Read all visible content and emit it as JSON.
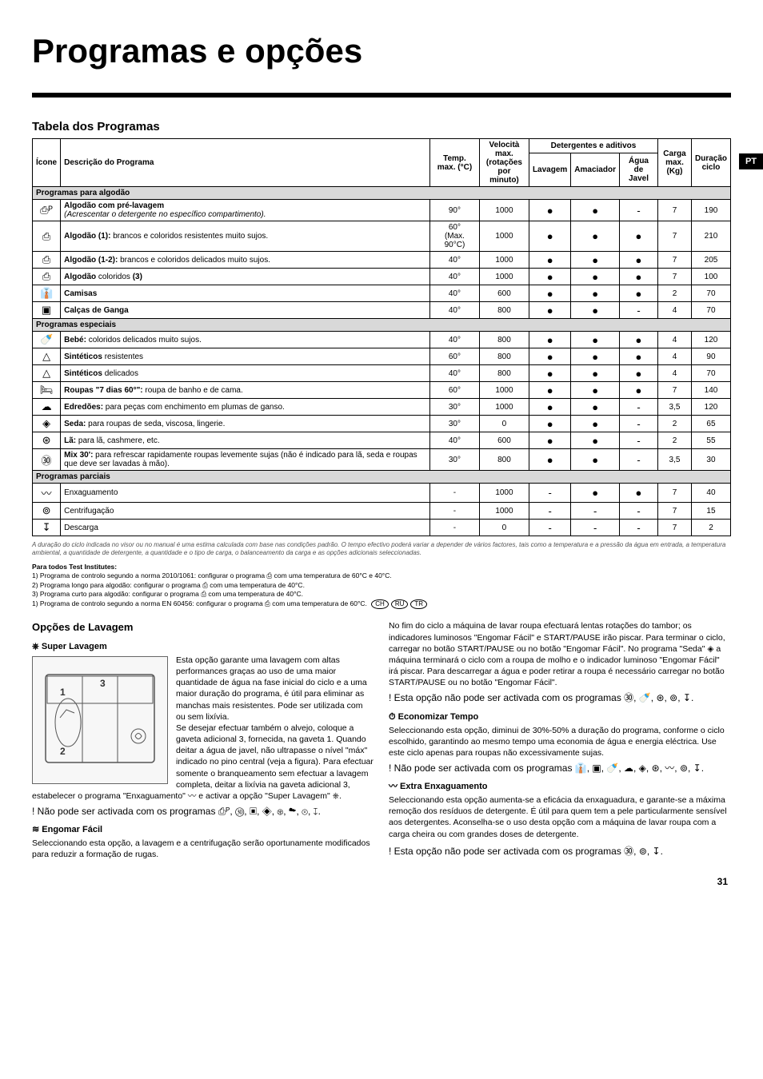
{
  "page": {
    "title": "Programas e opções",
    "lang_tab": "PT",
    "page_number": "31"
  },
  "table": {
    "section_title": "Tabela dos Programas",
    "headers": {
      "icone": "Ícone",
      "desc": "Descrição do Programa",
      "temp": "Temp. max. (°C)",
      "speed": "Velocità max. (rotações por minuto)",
      "detergents_group": "Detergentes e aditivos",
      "lavagem": "Lavagem",
      "amaciador": "Amaciador",
      "agua_javel": "Água de Javel",
      "carga": "Carga max. (Kg)",
      "duracao": "Duração ciclo"
    },
    "groups": [
      {
        "label": "Programas para algodão"
      },
      {
        "label": "Programas especiais"
      },
      {
        "label": "Programas parciais"
      }
    ],
    "cotton_rows": [
      {
        "icon": "⎙ᴾ",
        "desc_html": "<b>Algodão com pré-lavagem</b><br><i>(Acrescentar o detergente no específico compartimento).</i>",
        "temp": "90°",
        "speed": "1000",
        "lav": "●",
        "ama": "●",
        "jav": "-",
        "carga": "7",
        "dur": "190"
      },
      {
        "icon": "⎙",
        "desc_html": "<b>Algodão (1):</b> brancos e coloridos resistentes muito sujos.",
        "temp": "60°<br>(Max. 90°C)",
        "speed": "1000",
        "lav": "●",
        "ama": "●",
        "jav": "●",
        "carga": "7",
        "dur": "210"
      },
      {
        "icon": "⎙",
        "desc_html": "<b>Algodão (1-2):</b> brancos e coloridos delicados muito sujos.",
        "temp": "40°",
        "speed": "1000",
        "lav": "●",
        "ama": "●",
        "jav": "●",
        "carga": "7",
        "dur": "205"
      },
      {
        "icon": "⎙",
        "desc_html": "<b>Algodão</b> coloridos <b>(3)</b>",
        "temp": "40°",
        "speed": "1000",
        "lav": "●",
        "ama": "●",
        "jav": "●",
        "carga": "7",
        "dur": "100"
      },
      {
        "icon": "👔",
        "desc_html": "<b>Camisas</b>",
        "temp": "40°",
        "speed": "600",
        "lav": "●",
        "ama": "●",
        "jav": "●",
        "carga": "2",
        "dur": "70"
      },
      {
        "icon": "▣",
        "desc_html": "<b>Calças de Ganga</b>",
        "temp": "40°",
        "speed": "800",
        "lav": "●",
        "ama": "●",
        "jav": "-",
        "carga": "4",
        "dur": "70"
      }
    ],
    "special_rows": [
      {
        "icon": "🍼",
        "desc_html": "<b>Bebé:</b> coloridos delicados muito sujos.",
        "temp": "40°",
        "speed": "800",
        "lav": "●",
        "ama": "●",
        "jav": "●",
        "carga": "4",
        "dur": "120"
      },
      {
        "icon": "△",
        "desc_html": "<b>Sintéticos</b> resistentes",
        "temp": "60°",
        "speed": "800",
        "lav": "●",
        "ama": "●",
        "jav": "●",
        "carga": "4",
        "dur": "90"
      },
      {
        "icon": "△",
        "desc_html": "<b>Sintéticos</b> delicados",
        "temp": "40°",
        "speed": "800",
        "lav": "●",
        "ama": "●",
        "jav": "●",
        "carga": "4",
        "dur": "70"
      },
      {
        "icon": "🛏",
        "desc_html": "<b>Roupas \"7 dias 60°\":</b> roupa de banho e de cama.",
        "temp": "60°",
        "speed": "1000",
        "lav": "●",
        "ama": "●",
        "jav": "●",
        "carga": "7",
        "dur": "140"
      },
      {
        "icon": "☁",
        "desc_html": "<b>Edredões:</b> para peças com enchimento em plumas de ganso.",
        "temp": "30°",
        "speed": "1000",
        "lav": "●",
        "ama": "●",
        "jav": "-",
        "carga": "3,5",
        "dur": "120"
      },
      {
        "icon": "◈",
        "desc_html": "<b>Seda:</b> para roupas de seda, viscosa, lingerie.",
        "temp": "30°",
        "speed": "0",
        "lav": "●",
        "ama": "●",
        "jav": "-",
        "carga": "2",
        "dur": "65"
      },
      {
        "icon": "⊛",
        "desc_html": "<b>Lã:</b> para lã, cashmere, etc.",
        "temp": "40°",
        "speed": "600",
        "lav": "●",
        "ama": "●",
        "jav": "-",
        "carga": "2",
        "dur": "55"
      },
      {
        "icon": "㉚",
        "desc_html": "<b>Mix 30':</b> para refrescar rapidamente roupas levemente sujas (não é indicado para lã, seda e roupas que deve ser lavadas à mão).",
        "temp": "30°",
        "speed": "800",
        "lav": "●",
        "ama": "●",
        "jav": "-",
        "carga": "3,5",
        "dur": "30"
      }
    ],
    "partial_rows": [
      {
        "icon": "〰",
        "desc_html": "Enxaguamento",
        "temp": "-",
        "speed": "1000",
        "lav": "-",
        "ama": "●",
        "jav": "●",
        "carga": "7",
        "dur": "40"
      },
      {
        "icon": "⊚",
        "desc_html": "Centrifugação",
        "temp": "-",
        "speed": "1000",
        "lav": "-",
        "ama": "-",
        "jav": "-",
        "carga": "7",
        "dur": "15"
      },
      {
        "icon": "↧",
        "desc_html": "Descarga",
        "temp": "-",
        "speed": "0",
        "lav": "-",
        "ama": "-",
        "jav": "-",
        "carga": "7",
        "dur": "2"
      }
    ]
  },
  "footnote": "A duração do ciclo indicada no visor ou no manual é uma estima calculada com base nas condições padrão. O tempo efectivo poderá variar a depender de vários factores, tais como a temperatura e a pressão da água em entrada, a temperatura ambiental, a quantidade de detergente, a quantidade e o tipo de carga, o balanceamento da carga e as opções adicionais seleccionadas.",
  "institutes": {
    "heading": "Para todos Test Institutes:",
    "lines": [
      "1) Programa de controlo segundo a norma 2010/1061: configurar o programa ⎙ com uma temperatura de 60°C e 40°C.",
      "2) Programa longo para algodão: configurar o programa ⎙ com uma temperatura de 40°C.",
      "3) Programa curto para algodão: configurar o programa ⎙ com uma temperatura de 40°C.",
      "1) Programa de controlo segundo a norma EN 60456: configurar o programa ⎙ com uma temperatura de 60°C."
    ],
    "badges": [
      "CH",
      "RU",
      "TR"
    ]
  },
  "options": {
    "section_title": "Opções de Lavagem",
    "super": {
      "heading": "⎈ Super Lavagem",
      "body_top": "Esta opção garante uma lavagem com altas performances graças ao uso de uma maior quantidade de água na fase inicial do ciclo e a uma maior duração do programa, é útil para eliminar as manchas mais resistentes. Pode ser utilizada com ou sem lixívia.",
      "body_after": "Se desejar efectuar também o alvejo, coloque a gaveta adicional 3, fornecida, na gaveta 1. Quando deitar a água de javel, não ultrapasse o nível \"máx\" indicado no pino central (veja a figura). Para efectuar somente o branqueamento sem efectuar a lavagem completa, deitar a lixívia na gaveta adicional 3, estabelecer o programa \"Enxaguamento\" 〰 e activar a opção \"Super Lavagem\" ⎈.",
      "warn": "! Não pode ser activada com os programas ⎙ᴾ, ㉚, ▣, ◈, ⊛, ☁, ⊚, ↧."
    },
    "engomar": {
      "heading": "≋ Engomar Fácil",
      "body": "Seleccionando esta opção, a lavagem e a centrifugação serão oportunamente modificados para reduzir a formação de rugas."
    },
    "right_top": {
      "body": "No fim do ciclo a máquina de lavar roupa efectuará lentas rotações do tambor; os indicadores luminosos \"Engomar Fácil\" e START/PAUSE irão piscar. Para terminar o ciclo, carregar no botão START/PAUSE ou no botão \"Engomar Fácil\". No programa \"Seda\" ◈ a máquina terminará o ciclo com a roupa de molho e o indicador luminoso \"Engomar Fácil\" irá piscar. Para descarregar a água e poder retirar a roupa é necessário carregar no botão START/PAUSE ou no botão \"Engomar Fácil\".",
      "warn": "! Esta opção não pode ser activada com os programas ㉚, 🍼, ⊛, ⊚, ↧."
    },
    "economizar": {
      "heading": "⏱ Economizar Tempo",
      "body": "Seleccionando esta opção, diminui de 30%-50% a duração do programa, conforme o ciclo escolhido, garantindo ao mesmo tempo uma economia de água e energia eléctrica. Use este ciclo apenas para roupas não excessivamente sujas.",
      "warn": "! Não pode ser activada com os programas 👔, ▣, 🍼, ☁, ◈, ⊛, 〰, ⊚, ↧."
    },
    "extra": {
      "heading": "〰 Extra Enxaguamento",
      "body": "Seleccionando esta opção aumenta-se a eficácia da enxaguadura, e garante-se a máxima remoção dos resíduos de detergente. É útil para quem tem a pele particularmente sensível aos detergentes. Aconselha-se o uso desta opção com a máquina de lavar roupa com a carga cheira ou com grandes doses de detergente.",
      "warn": "! Esta opção não pode ser activada com os programas ㉚, ⊚, ↧."
    }
  }
}
